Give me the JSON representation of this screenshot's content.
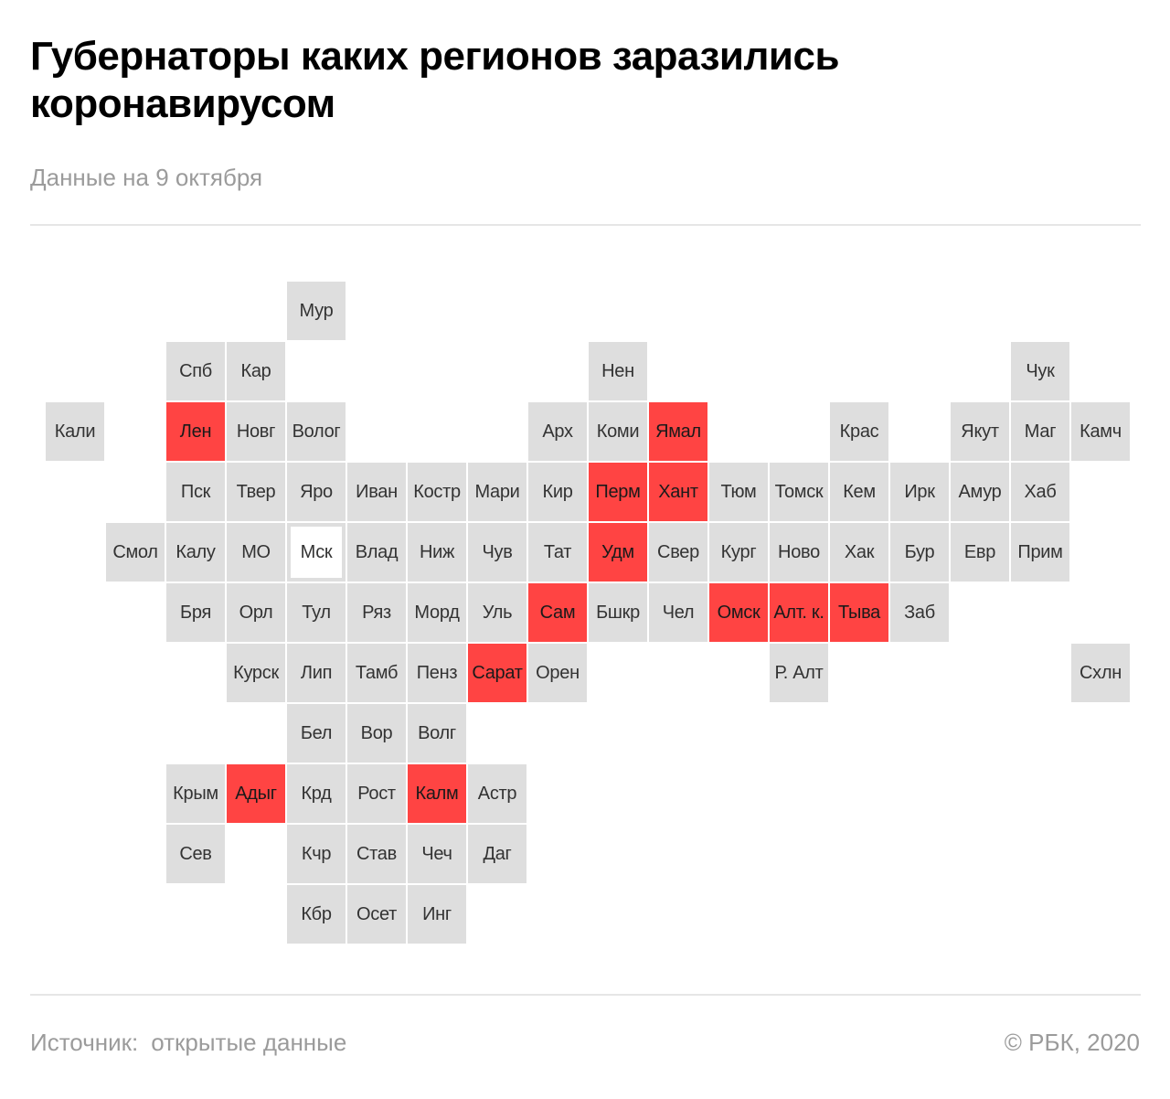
{
  "header": {
    "title": "Губернаторы каких регионов заразились коронавирусом",
    "subtitle": "Данные на 9 октября"
  },
  "legend_colors": {
    "infected": "#ff4443",
    "default": "#dedede"
  },
  "regions": [
    {
      "label": "Мур",
      "row": 0,
      "col": 4,
      "infected": false
    },
    {
      "label": "Спб",
      "row": 1,
      "col": 2,
      "infected": false
    },
    {
      "label": "Кар",
      "row": 1,
      "col": 3,
      "infected": false
    },
    {
      "label": "Нен",
      "row": 1,
      "col": 9,
      "infected": false
    },
    {
      "label": "Чук",
      "row": 1,
      "col": 16,
      "infected": false
    },
    {
      "label": "Кали",
      "row": 2,
      "col": 0,
      "infected": false
    },
    {
      "label": "Лен",
      "row": 2,
      "col": 2,
      "infected": true
    },
    {
      "label": "Новг",
      "row": 2,
      "col": 3,
      "infected": false
    },
    {
      "label": "Волог",
      "row": 2,
      "col": 4,
      "infected": false
    },
    {
      "label": "Арх",
      "row": 2,
      "col": 8,
      "infected": false
    },
    {
      "label": "Коми",
      "row": 2,
      "col": 9,
      "infected": false
    },
    {
      "label": "Ямал",
      "row": 2,
      "col": 10,
      "infected": true
    },
    {
      "label": "Крас",
      "row": 2,
      "col": 13,
      "infected": false
    },
    {
      "label": "Якут",
      "row": 2,
      "col": 15,
      "infected": false
    },
    {
      "label": "Маг",
      "row": 2,
      "col": 16,
      "infected": false
    },
    {
      "label": "Камч",
      "row": 2,
      "col": 17,
      "infected": false
    },
    {
      "label": "Пск",
      "row": 3,
      "col": 2,
      "infected": false
    },
    {
      "label": "Твер",
      "row": 3,
      "col": 3,
      "infected": false
    },
    {
      "label": "Яро",
      "row": 3,
      "col": 4,
      "infected": false
    },
    {
      "label": "Иван",
      "row": 3,
      "col": 5,
      "infected": false
    },
    {
      "label": "Костр",
      "row": 3,
      "col": 6,
      "infected": false
    },
    {
      "label": "Мари",
      "row": 3,
      "col": 7,
      "infected": false
    },
    {
      "label": "Кир",
      "row": 3,
      "col": 8,
      "infected": false
    },
    {
      "label": "Перм",
      "row": 3,
      "col": 9,
      "infected": true
    },
    {
      "label": "Хант",
      "row": 3,
      "col": 10,
      "infected": true
    },
    {
      "label": "Тюм",
      "row": 3,
      "col": 11,
      "infected": false
    },
    {
      "label": "Томск",
      "row": 3,
      "col": 12,
      "infected": false
    },
    {
      "label": "Кем",
      "row": 3,
      "col": 13,
      "infected": false
    },
    {
      "label": "Ирк",
      "row": 3,
      "col": 14,
      "infected": false
    },
    {
      "label": "Амур",
      "row": 3,
      "col": 15,
      "infected": false
    },
    {
      "label": "Хаб",
      "row": 3,
      "col": 16,
      "infected": false
    },
    {
      "label": "Смол",
      "row": 4,
      "col": 1,
      "infected": false
    },
    {
      "label": "Калу",
      "row": 4,
      "col": 2,
      "infected": false
    },
    {
      "label": "МО",
      "row": 4,
      "col": 3,
      "infected": false
    },
    {
      "label": "Мск",
      "row": 4,
      "col": 4,
      "infected": false,
      "capital": true
    },
    {
      "label": "Влад",
      "row": 4,
      "col": 5,
      "infected": false
    },
    {
      "label": "Ниж",
      "row": 4,
      "col": 6,
      "infected": false
    },
    {
      "label": "Чув",
      "row": 4,
      "col": 7,
      "infected": false
    },
    {
      "label": "Тат",
      "row": 4,
      "col": 8,
      "infected": false
    },
    {
      "label": "Удм",
      "row": 4,
      "col": 9,
      "infected": true
    },
    {
      "label": "Свер",
      "row": 4,
      "col": 10,
      "infected": false
    },
    {
      "label": "Кург",
      "row": 4,
      "col": 11,
      "infected": false
    },
    {
      "label": "Ново",
      "row": 4,
      "col": 12,
      "infected": false
    },
    {
      "label": "Хак",
      "row": 4,
      "col": 13,
      "infected": false
    },
    {
      "label": "Бур",
      "row": 4,
      "col": 14,
      "infected": false
    },
    {
      "label": "Евр",
      "row": 4,
      "col": 15,
      "infected": false
    },
    {
      "label": "Прим",
      "row": 4,
      "col": 16,
      "infected": false
    },
    {
      "label": "Бря",
      "row": 5,
      "col": 2,
      "infected": false
    },
    {
      "label": "Орл",
      "row": 5,
      "col": 3,
      "infected": false
    },
    {
      "label": "Тул",
      "row": 5,
      "col": 4,
      "infected": false
    },
    {
      "label": "Ряз",
      "row": 5,
      "col": 5,
      "infected": false
    },
    {
      "label": "Морд",
      "row": 5,
      "col": 6,
      "infected": false
    },
    {
      "label": "Уль",
      "row": 5,
      "col": 7,
      "infected": false
    },
    {
      "label": "Сам",
      "row": 5,
      "col": 8,
      "infected": true
    },
    {
      "label": "Бшкр",
      "row": 5,
      "col": 9,
      "infected": false
    },
    {
      "label": "Чел",
      "row": 5,
      "col": 10,
      "infected": false
    },
    {
      "label": "Омск",
      "row": 5,
      "col": 11,
      "infected": true
    },
    {
      "label": "Алт. к.",
      "row": 5,
      "col": 12,
      "infected": true
    },
    {
      "label": "Тыва",
      "row": 5,
      "col": 13,
      "infected": true
    },
    {
      "label": "Заб",
      "row": 5,
      "col": 14,
      "infected": false
    },
    {
      "label": "Курск",
      "row": 6,
      "col": 3,
      "infected": false
    },
    {
      "label": "Лип",
      "row": 6,
      "col": 4,
      "infected": false
    },
    {
      "label": "Тамб",
      "row": 6,
      "col": 5,
      "infected": false
    },
    {
      "label": "Пенз",
      "row": 6,
      "col": 6,
      "infected": false
    },
    {
      "label": "Сарат",
      "row": 6,
      "col": 7,
      "infected": true
    },
    {
      "label": "Орен",
      "row": 6,
      "col": 8,
      "infected": false
    },
    {
      "label": "Р. Алт",
      "row": 6,
      "col": 12,
      "infected": false
    },
    {
      "label": "Схлн",
      "row": 6,
      "col": 17,
      "infected": false
    },
    {
      "label": "Бел",
      "row": 7,
      "col": 4,
      "infected": false
    },
    {
      "label": "Вор",
      "row": 7,
      "col": 5,
      "infected": false
    },
    {
      "label": "Волг",
      "row": 7,
      "col": 6,
      "infected": false
    },
    {
      "label": "Крым",
      "row": 8,
      "col": 2,
      "infected": false
    },
    {
      "label": "Адыг",
      "row": 8,
      "col": 3,
      "infected": true
    },
    {
      "label": "Крд",
      "row": 8,
      "col": 4,
      "infected": false
    },
    {
      "label": "Рост",
      "row": 8,
      "col": 5,
      "infected": false
    },
    {
      "label": "Калм",
      "row": 8,
      "col": 6,
      "infected": true
    },
    {
      "label": "Астр",
      "row": 8,
      "col": 7,
      "infected": false
    },
    {
      "label": "Сев",
      "row": 9,
      "col": 2,
      "infected": false
    },
    {
      "label": "Кчр",
      "row": 9,
      "col": 4,
      "infected": false
    },
    {
      "label": "Став",
      "row": 9,
      "col": 5,
      "infected": false
    },
    {
      "label": "Чеч",
      "row": 9,
      "col": 6,
      "infected": false
    },
    {
      "label": "Даг",
      "row": 9,
      "col": 7,
      "infected": false
    },
    {
      "label": "Кбр",
      "row": 10,
      "col": 4,
      "infected": false
    },
    {
      "label": "Осет",
      "row": 10,
      "col": 5,
      "infected": false
    },
    {
      "label": "Инг",
      "row": 10,
      "col": 6,
      "infected": false
    }
  ],
  "footer": {
    "source_label": "Источник:",
    "source_value": "открытые данные",
    "copyright": "© РБК, 2020"
  }
}
